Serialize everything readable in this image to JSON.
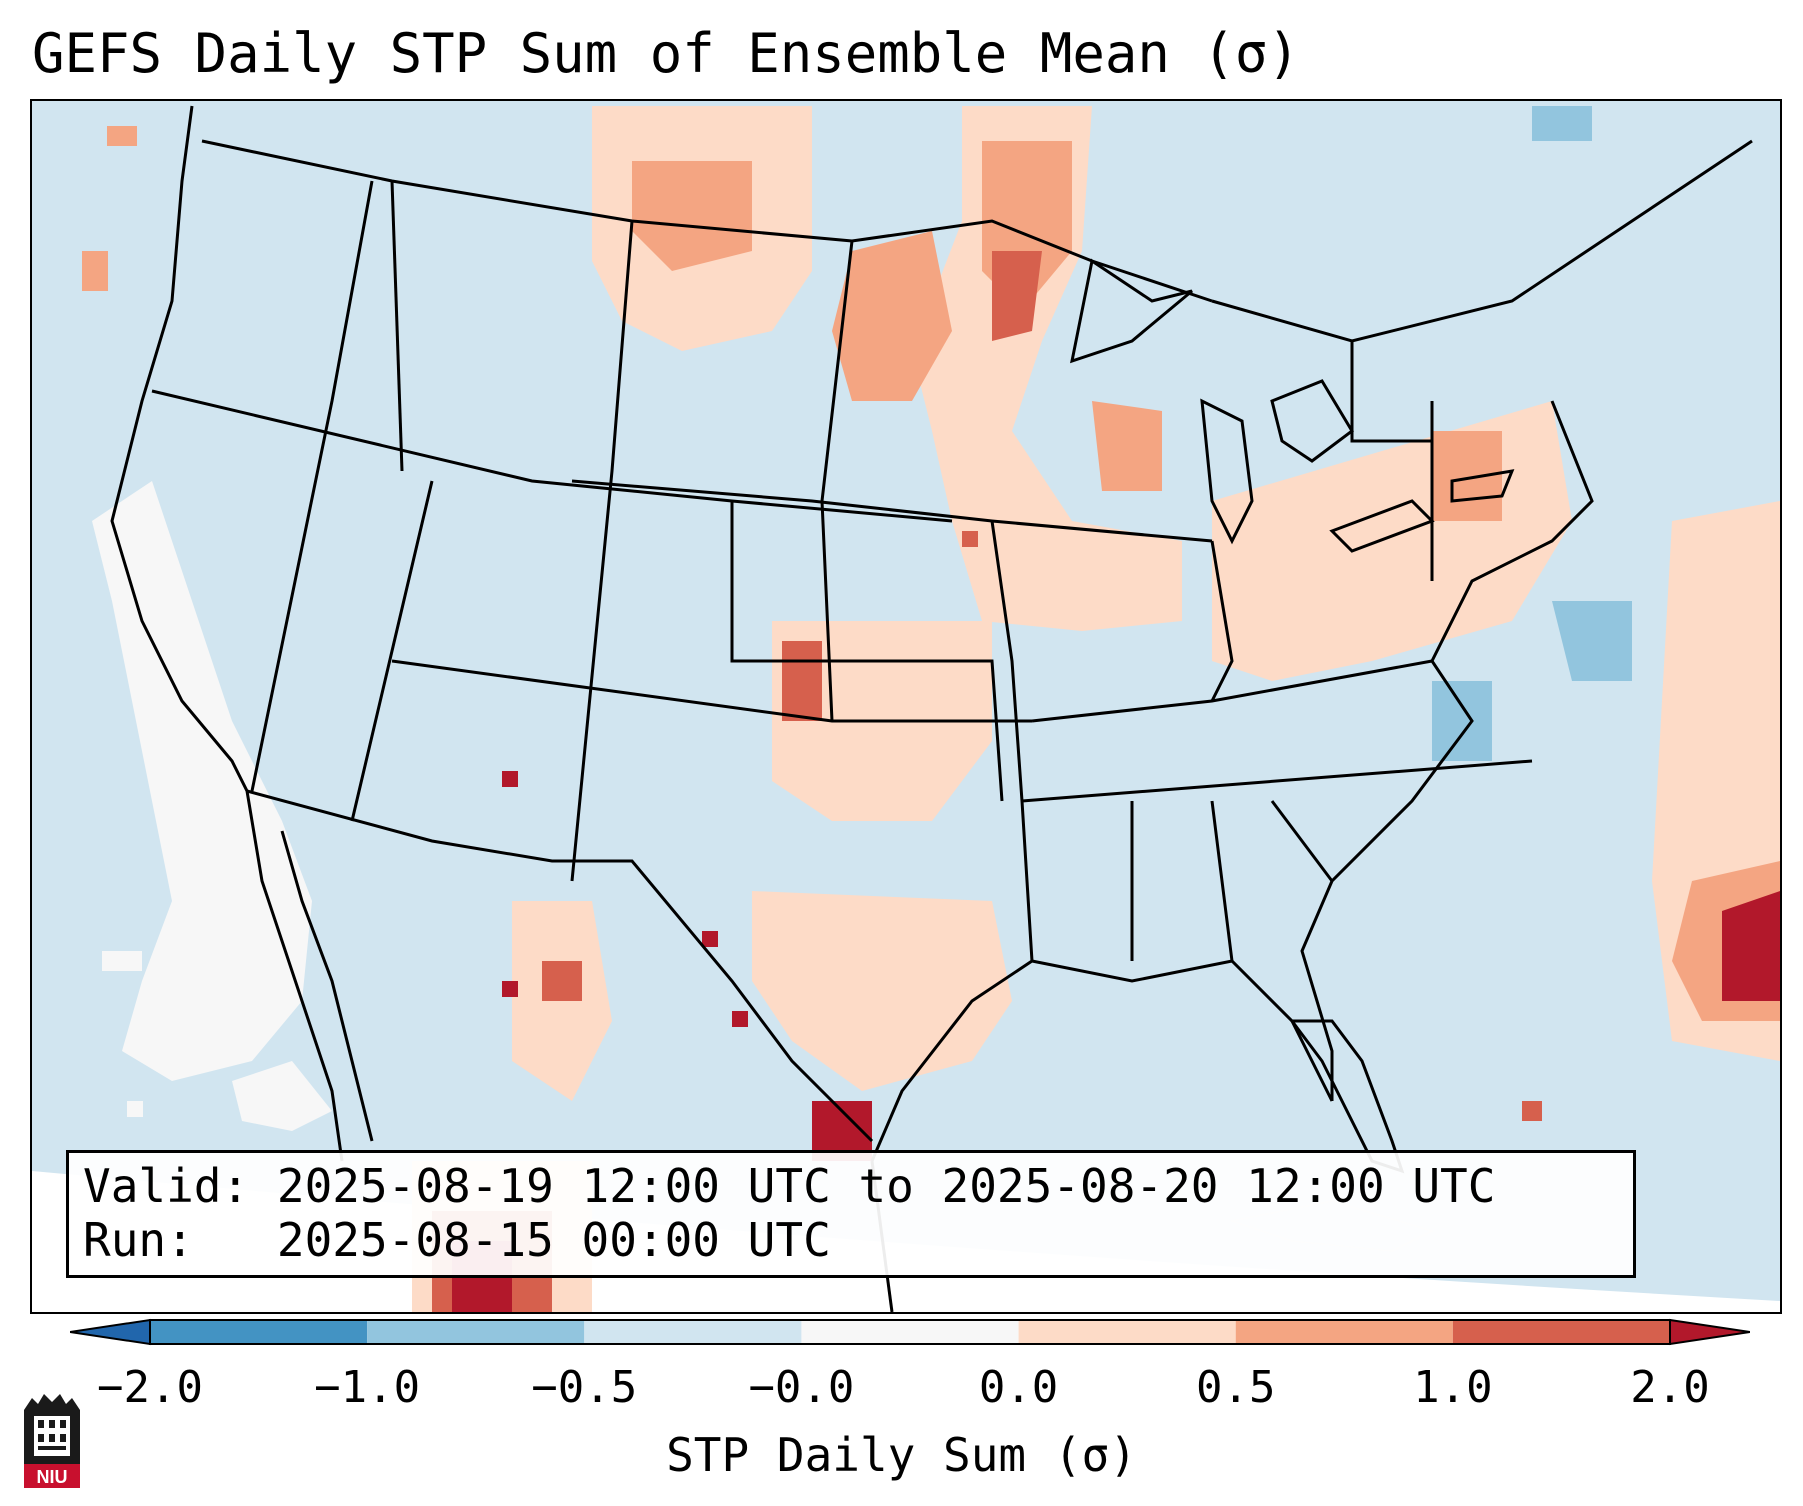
{
  "title": "GEFS Daily STP Sum of Ensemble Mean (σ)",
  "info": {
    "valid_label": "Valid:",
    "valid_value": "2025-08-19 12:00 UTC to 2025-08-20 12:00 UTC",
    "run_label": "Run:",
    "run_value": "2025-08-15 00:00 UTC"
  },
  "colorbar": {
    "label": "STP Daily Sum (σ)",
    "ticks": [
      "−2.0",
      "−1.0",
      "−0.5",
      "−0.0",
      "0.0",
      "0.5",
      "1.0",
      "2.0"
    ],
    "bins": [
      {
        "from": -2.0,
        "to": -1.0,
        "color": "#4393c3"
      },
      {
        "from": -1.0,
        "to": -0.5,
        "color": "#92c5de"
      },
      {
        "from": -0.5,
        "to": -0.0,
        "color": "#d1e5f0"
      },
      {
        "from": -0.0,
        "to": 0.0,
        "color": "#f7f7f7"
      },
      {
        "from": 0.0,
        "to": 0.5,
        "color": "#fddbc7"
      },
      {
        "from": 0.5,
        "to": 1.0,
        "color": "#f4a582"
      },
      {
        "from": 1.0,
        "to": 2.0,
        "color": "#d6604d"
      }
    ],
    "under_color": "#2166ac",
    "over_color": "#b2182b"
  },
  "logo": {
    "text": "NIU",
    "name": "Northern Illinois University"
  },
  "colors": {
    "background_field": "#d1e5f0",
    "outline": "#000000"
  }
}
